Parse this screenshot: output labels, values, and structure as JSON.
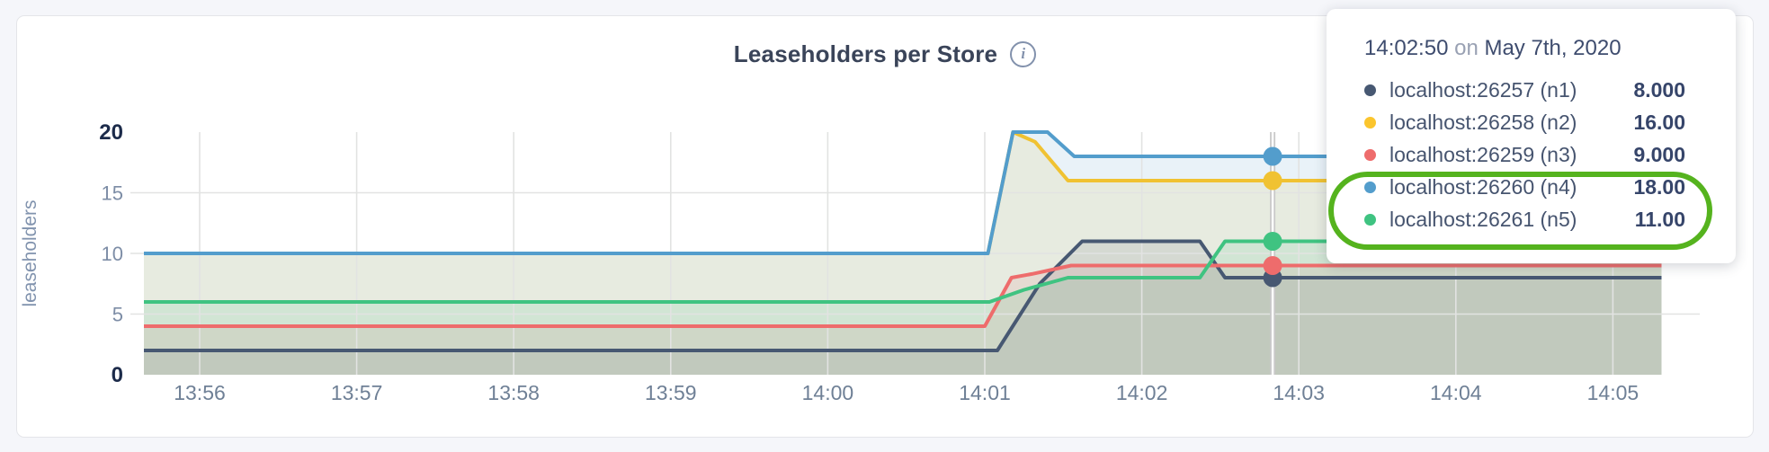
{
  "header": {
    "title": "Leaseholders per Store",
    "info_icon": "i"
  },
  "chart_data": {
    "type": "area",
    "title": "Leaseholders per Store",
    "xlabel": "",
    "ylabel": "leaseholders",
    "ylim": [
      0,
      20
    ],
    "y_ticks": [
      0,
      5,
      10,
      15,
      20
    ],
    "y_major_ticks": [
      0,
      20
    ],
    "x_ticks": [
      "13:56",
      "13:57",
      "13:58",
      "13:59",
      "14:00",
      "14:01",
      "14:02",
      "14:03",
      "14:04",
      "14:05"
    ],
    "grid": true,
    "legend_position": "tooltip-overlay",
    "fill_opacity": 0.13,
    "time_note": "point x values are minutes after 13:55:00; data spans ~13:55:39 to ~14:05:19",
    "series": [
      {
        "id": "n1",
        "name": "localhost:26257 (n1)",
        "color": "#475872",
        "points": [
          [
            0.645,
            2
          ],
          [
            6.08,
            2
          ],
          [
            6.35,
            7.5
          ],
          [
            6.62,
            11
          ],
          [
            7.37,
            11
          ],
          [
            7.53,
            8
          ],
          [
            10.31,
            8
          ]
        ]
      },
      {
        "id": "n2",
        "name": "localhost:26258 (n2)",
        "color": "#f0c232",
        "points": [
          [
            0.645,
            10
          ],
          [
            6.02,
            10
          ],
          [
            6.18,
            20
          ],
          [
            6.32,
            19.2
          ],
          [
            6.53,
            16
          ],
          [
            10.31,
            16
          ]
        ]
      },
      {
        "id": "n3",
        "name": "localhost:26259 (n3)",
        "color": "#ee6c6c",
        "points": [
          [
            0.645,
            4
          ],
          [
            6.0,
            4
          ],
          [
            6.17,
            8
          ],
          [
            6.3,
            8.3
          ],
          [
            6.55,
            9
          ],
          [
            10.31,
            9
          ]
        ]
      },
      {
        "id": "n4",
        "name": "localhost:26260 (n4)",
        "color": "#539dcc",
        "points": [
          [
            0.645,
            10
          ],
          [
            6.02,
            10
          ],
          [
            6.18,
            20
          ],
          [
            6.4,
            20
          ],
          [
            6.57,
            18
          ],
          [
            10.31,
            18
          ]
        ]
      },
      {
        "id": "n5",
        "name": "localhost:26261 (n5)",
        "color": "#3fc381",
        "points": [
          [
            0.645,
            6
          ],
          [
            6.03,
            6
          ],
          [
            6.25,
            7
          ],
          [
            6.53,
            8
          ],
          [
            7.37,
            8
          ],
          [
            7.53,
            11
          ],
          [
            10.31,
            11
          ]
        ]
      }
    ],
    "hover": {
      "t": 7.8333,
      "time": "14:02:50",
      "values": [
        8,
        16,
        9,
        18,
        11
      ]
    }
  },
  "tooltip": {
    "time": "14:02:50",
    "on_word": "on",
    "date": "May 7th, 2020",
    "rows": [
      {
        "label": "localhost:26257 (n1)",
        "value": "8.000",
        "color": "#475872"
      },
      {
        "label": "localhost:26258 (n2)",
        "value": "16.00",
        "color": "#fbc52d"
      },
      {
        "label": "localhost:26259 (n3)",
        "value": "9.000",
        "color": "#ee6c6c"
      },
      {
        "label": "localhost:26260 (n4)",
        "value": "18.00",
        "color": "#539dcc"
      },
      {
        "label": "localhost:26261 (n5)",
        "value": "11.00",
        "color": "#3fc381"
      }
    ],
    "highlighted_rows": [
      3,
      4
    ]
  },
  "annotation": {
    "shape": "ellipse",
    "color": "#55b31e"
  },
  "colors": {
    "page_bg": "#f5f6fa",
    "card_bg": "#ffffff",
    "card_border": "#e4e5e9",
    "grid": "#e2e3e2",
    "hover_line": "#c9c9c9",
    "tick_minor": "#7d8da6",
    "tick_major": "#1c2b4a",
    "x_tick": "#6f8096",
    "axis_title": "#8193ae",
    "title_text": "#3a4459",
    "info_icon": "#8291ac"
  }
}
